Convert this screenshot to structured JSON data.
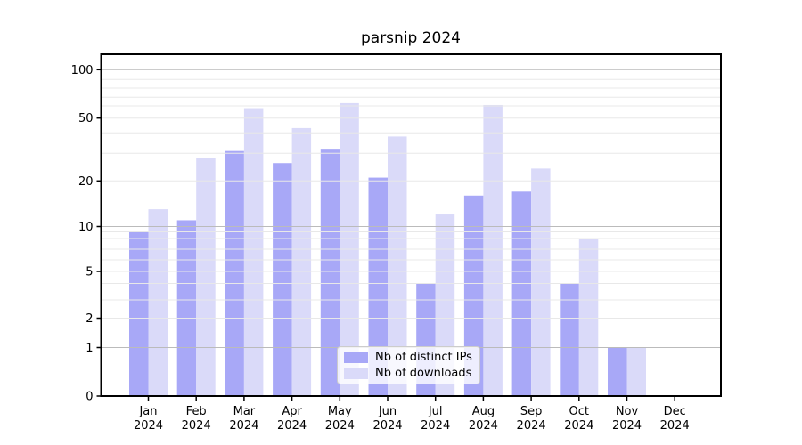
{
  "chart_data": {
    "type": "bar",
    "title": "parsnip 2024",
    "categories": [
      "Jan",
      "Feb",
      "Mar",
      "Apr",
      "May",
      "Jun",
      "Jul",
      "Aug",
      "Sep",
      "Oct",
      "Nov",
      "Dec"
    ],
    "category_year": "2024",
    "series": [
      {
        "name": "Nb of distinct IPs",
        "color": "#a8a8f7",
        "values": [
          9,
          11,
          31,
          26,
          32,
          21,
          4,
          16,
          17,
          4,
          1,
          0
        ]
      },
      {
        "name": "Nb of downloads",
        "color": "#dadaf9",
        "values": [
          13,
          28,
          58,
          43,
          63,
          38,
          12,
          61,
          24,
          8,
          1,
          0
        ]
      }
    ],
    "xlabel": "",
    "ylabel": "",
    "yscale": "symlog",
    "yticks": [
      0,
      1,
      2,
      5,
      10,
      20,
      50,
      100
    ],
    "ylim": [
      0,
      125
    ],
    "grid": {
      "on": true,
      "major_values": [
        1,
        10,
        100
      ],
      "minor_values": [
        2,
        3,
        4,
        5,
        6,
        7,
        8,
        9,
        20,
        30,
        40,
        50,
        60,
        70,
        80,
        90
      ],
      "major_color": "#bbbbbb",
      "minor_color": "#e8e8e8"
    },
    "legend_position": "lower center",
    "frame_color": "#000000",
    "background_color": "#ffffff"
  }
}
